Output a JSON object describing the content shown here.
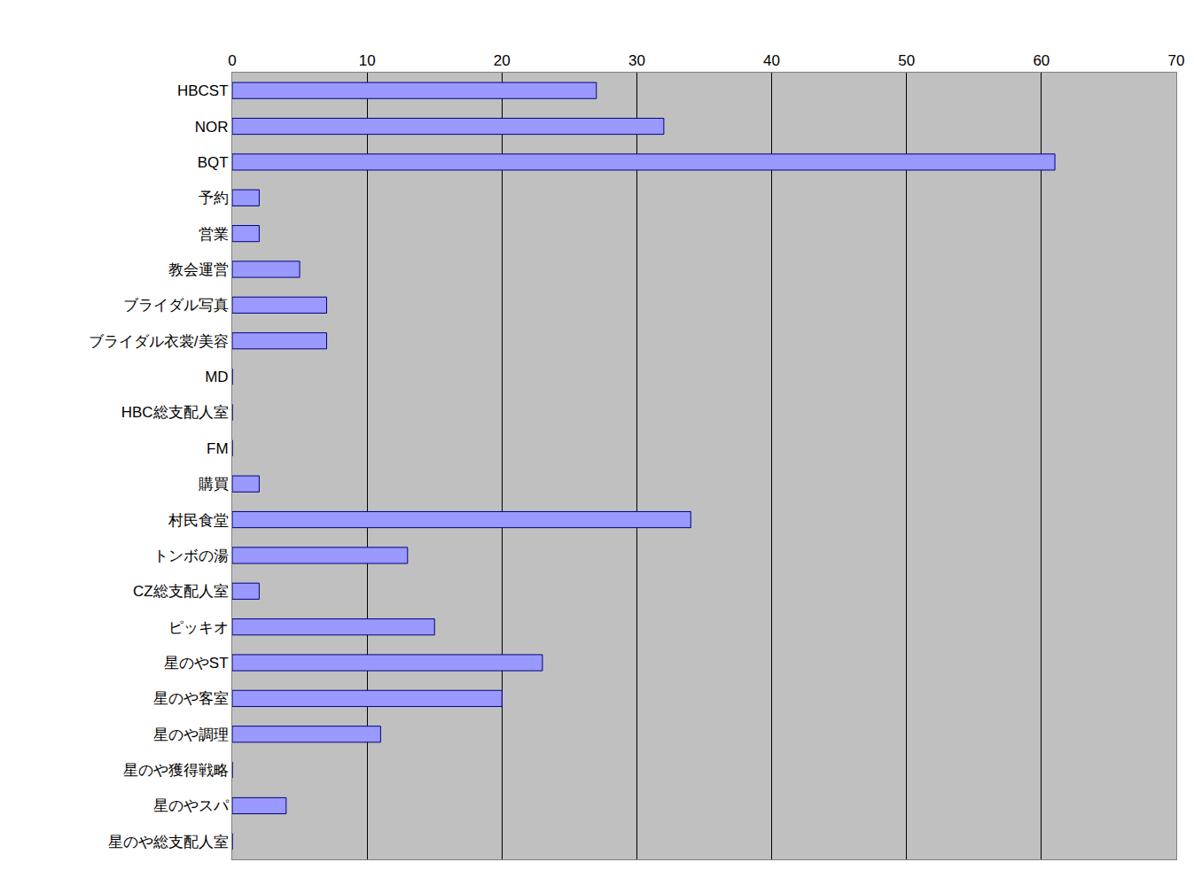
{
  "chart_data": {
    "type": "bar",
    "orientation": "horizontal",
    "categories": [
      "HBCST",
      "NOR",
      "BQT",
      "予約",
      "営業",
      "教会運営",
      "ブライダル写真",
      "ブライダル衣裳/美容",
      "MD",
      "HBC総支配人室",
      "FM",
      "購買",
      "村民食堂",
      "トンボの湯",
      "CZ総支配人室",
      "ピッキオ",
      "星のやST",
      "星のや客室",
      "星のや調理",
      "星のや獲得戦略",
      "星のやスパ",
      "星のや総支配人室"
    ],
    "values": [
      27,
      32,
      61,
      2,
      2,
      5,
      7,
      7,
      0,
      0,
      0,
      2,
      34,
      13,
      2,
      15,
      23,
      20,
      11,
      0,
      4,
      0
    ],
    "color": "#9999ff",
    "xlim": [
      0,
      70
    ],
    "xticks": [
      0,
      10,
      20,
      30,
      40,
      50,
      60,
      70
    ],
    "grid": true
  }
}
